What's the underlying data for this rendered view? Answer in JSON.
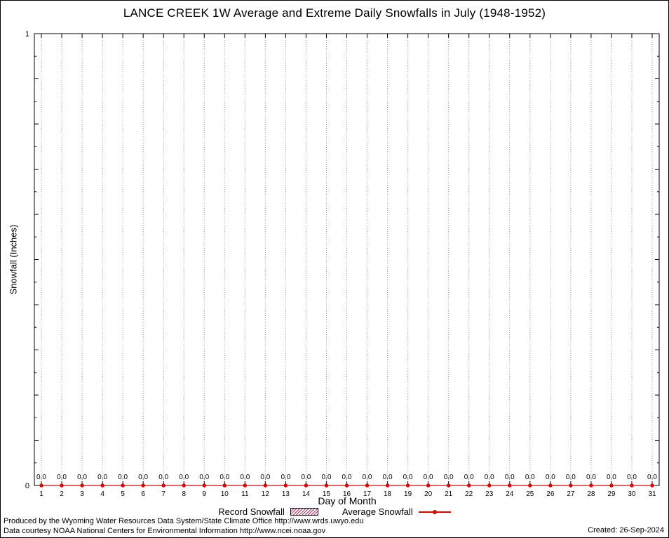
{
  "chart_data": {
    "type": "line",
    "title": "LANCE CREEK 1W Average and Extreme Daily Snowfalls in July (1948-1952)",
    "xlabel": "Day of Month",
    "ylabel": "Snowfall (Inches)",
    "x": [
      1,
      2,
      3,
      4,
      5,
      6,
      7,
      8,
      9,
      10,
      11,
      12,
      13,
      14,
      15,
      16,
      17,
      18,
      19,
      20,
      21,
      22,
      23,
      24,
      25,
      26,
      27,
      28,
      29,
      30,
      31
    ],
    "series": [
      {
        "name": "Record Snowfall",
        "style": "boxes",
        "values": [
          0,
          0,
          0,
          0,
          0,
          0,
          0,
          0,
          0,
          0,
          0,
          0,
          0,
          0,
          0,
          0,
          0,
          0,
          0,
          0,
          0,
          0,
          0,
          0,
          0,
          0,
          0,
          0,
          0,
          0,
          0
        ]
      },
      {
        "name": "Average Snowfall",
        "style": "line-points",
        "values": [
          0,
          0,
          0,
          0,
          0,
          0,
          0,
          0,
          0,
          0,
          0,
          0,
          0,
          0,
          0,
          0,
          0,
          0,
          0,
          0,
          0,
          0,
          0,
          0,
          0,
          0,
          0,
          0,
          0,
          0,
          0
        ]
      }
    ],
    "point_labels": [
      "0.0",
      "0.0",
      "0.0",
      "0.0",
      "0.0",
      "0.0",
      "0.0",
      "0.0",
      "0.0",
      "0.0",
      "0.0",
      "0.0",
      "0.0",
      "0.0",
      "0.0",
      "0.0",
      "0.0",
      "0.0",
      "0.0",
      "0.0",
      "0.0",
      "0.0",
      "0.0",
      "0.0",
      "0.0",
      "0.0",
      "0.0",
      "0.0",
      "0.0",
      "0.0",
      "0.0"
    ],
    "ylim": [
      0,
      1
    ],
    "ytick_labels": [
      {
        "v": 0,
        "label": "0"
      },
      {
        "v": 1,
        "label": "1"
      }
    ],
    "y_minor_tick_step": 0.05,
    "y_major_tick_step": 0.1,
    "grid": "vertical-dotted",
    "legend_position": "bottom-center",
    "colors": {
      "average": "#e00000",
      "record": "#b03060",
      "grid": "#999999",
      "axis": "#000000"
    }
  },
  "legend": {
    "record_label": "Record Snowfall",
    "average_label": "Average Snowfall"
  },
  "footer": {
    "line1": "Produced by the Wyoming Water Resources Data System/State Climate Office http://www.wrds.uwyo.edu",
    "line2": "Data courtesy NOAA National Centers for Environmental Information http://www.ncei.noaa.gov",
    "created": "Created: 26-Sep-2024"
  }
}
